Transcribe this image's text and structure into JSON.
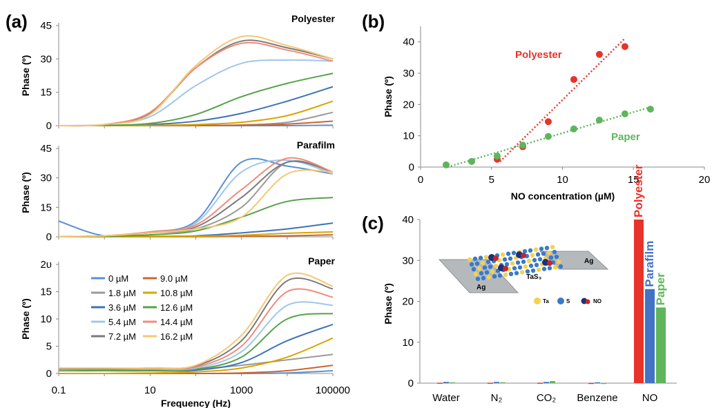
{
  "colors": {
    "0 µM": "#5b8fd0",
    "9.0 µM": "#c9662e",
    "1.8 µM": "#9a9a9a",
    "10.8 µM": "#d9a400",
    "3.6 µM": "#3d73b6",
    "12.6 µM": "#56a24a",
    "5.4 µM": "#9fc6ea",
    "14.4 µM": "#f08a78",
    "7.2 µM": "#7a7a7a",
    "16.2 µM": "#f6c773",
    "polyester": "#e8332a",
    "paraffilm": "#4472c4",
    "paper": "#5fb55b"
  },
  "chart_data": [
    {
      "panel_label": "(a)",
      "type": "line",
      "title": "Polyester",
      "xlabel": "",
      "ylabel": "Phase (º)",
      "xscale": "log",
      "xlim": [
        0.1,
        100000
      ],
      "ylim": [
        0,
        45
      ],
      "yticks": [
        "0",
        "15",
        "30",
        "45"
      ],
      "x": [
        0.1,
        1,
        10,
        100,
        1000,
        10000,
        100000
      ],
      "series": [
        {
          "name": "0 µM",
          "values": [
            0,
            0,
            0,
            0,
            0,
            0,
            0.2
          ]
        },
        {
          "name": "1.8 µM",
          "values": [
            0,
            0,
            0,
            0.1,
            0.3,
            1.5,
            6
          ]
        },
        {
          "name": "3.6 µM",
          "values": [
            0,
            0.1,
            0.5,
            2,
            5.5,
            11,
            17.5
          ]
        },
        {
          "name": "5.4 µM",
          "values": [
            0,
            0.5,
            4,
            18,
            28,
            29.5,
            29
          ]
        },
        {
          "name": "7.2 µM",
          "values": [
            0,
            0.5,
            5.5,
            26,
            38,
            35,
            30
          ]
        },
        {
          "name": "9.0 µM",
          "values": [
            0,
            0,
            0,
            0.05,
            0.2,
            0.7,
            2
          ]
        },
        {
          "name": "10.8 µM",
          "values": [
            0,
            0,
            0.1,
            0.5,
            1.5,
            4.5,
            11
          ]
        },
        {
          "name": "12.6 µM",
          "values": [
            0,
            0.1,
            1,
            5,
            13,
            19,
            23.5
          ]
        },
        {
          "name": "14.4 µM",
          "values": [
            0,
            0.5,
            6,
            26,
            37,
            34,
            29
          ]
        },
        {
          "name": "16.2 µM",
          "values": [
            0,
            0.5,
            5,
            27,
            40,
            36,
            30
          ]
        }
      ]
    },
    {
      "type": "line",
      "title": "Parafilm",
      "xlabel": "",
      "ylabel": "Phase (º)",
      "xscale": "log",
      "xlim": [
        0.1,
        100000
      ],
      "ylim": [
        0,
        45
      ],
      "yticks": [
        "0",
        "15",
        "30",
        "45"
      ],
      "x": [
        0.1,
        1,
        10,
        100,
        1000,
        10000,
        100000
      ],
      "series": [
        {
          "name": "0 µM",
          "values": [
            8,
            0.5,
            2.5,
            8,
            38,
            36,
            32
          ]
        },
        {
          "name": "1.8 µM",
          "values": [
            0,
            0.5,
            2,
            4,
            15,
            38,
            33
          ]
        },
        {
          "name": "3.6 µM",
          "values": [
            0,
            0,
            0.2,
            0.5,
            2,
            4,
            7
          ]
        },
        {
          "name": "5.4 µM",
          "values": [
            0,
            0.5,
            2.5,
            7,
            33,
            39,
            32
          ]
        },
        {
          "name": "7.2 µM",
          "values": [
            0,
            0.5,
            2,
            5,
            20,
            38,
            33
          ]
        },
        {
          "name": "9.0 µM",
          "values": [
            0,
            0,
            0,
            0.05,
            0.2,
            0.5,
            1
          ]
        },
        {
          "name": "10.8 µM",
          "values": [
            0,
            0,
            0.1,
            0.3,
            0.8,
            1.8,
            2.5
          ]
        },
        {
          "name": "12.6 µM",
          "values": [
            0,
            0.2,
            1,
            3,
            10,
            18,
            20
          ]
        },
        {
          "name": "14.4 µM",
          "values": [
            0,
            0.5,
            2.5,
            6,
            24,
            40,
            33
          ]
        },
        {
          "name": "16.2 µM",
          "values": [
            0,
            0.5,
            2,
            4,
            10,
            32,
            33
          ]
        }
      ]
    },
    {
      "type": "line",
      "title": "Paper",
      "xlabel": "Frequency (Hz)",
      "ylabel": "Phase (º)",
      "xscale": "log",
      "xlim": [
        0.1,
        100000
      ],
      "ylim": [
        0,
        20
      ],
      "yticks": [
        "0",
        "5",
        "10",
        "15",
        "2υ"
      ],
      "xticks": [
        "0.1",
        "10",
        "1000",
        "100000"
      ],
      "legend_placement": "left",
      "x": [
        0.1,
        1,
        10,
        100,
        1000,
        10000,
        100000
      ],
      "series": [
        {
          "name": "0 µM",
          "values": [
            0,
            0,
            0,
            0,
            0,
            0.1,
            0.5
          ]
        },
        {
          "name": "9.0 µM",
          "values": [
            0,
            0,
            0,
            0,
            0.1,
            0.5,
            1.5
          ]
        },
        {
          "name": "1.8 µM",
          "values": [
            0.7,
            0.7,
            0.7,
            0.8,
            1.5,
            2.5,
            3.5
          ]
        },
        {
          "name": "10.8 µM",
          "values": [
            0,
            0,
            0.1,
            0.3,
            1,
            3,
            6.5
          ]
        },
        {
          "name": "3.6 µM",
          "values": [
            0.5,
            0.5,
            0.5,
            0.6,
            2,
            6,
            9
          ]
        },
        {
          "name": "12.6 µM",
          "values": [
            0.5,
            0.5,
            0.6,
            0.8,
            3,
            10,
            11
          ]
        },
        {
          "name": "5.4 µM",
          "values": [
            0.7,
            0.8,
            0.8,
            1,
            4,
            12.5,
            12.5
          ]
        },
        {
          "name": "14.4 µM",
          "values": [
            0.8,
            0.8,
            0.9,
            1.2,
            5,
            15,
            14
          ]
        },
        {
          "name": "7.2 µM",
          "values": [
            0.9,
            0.9,
            1,
            1.4,
            6,
            17,
            15.5
          ]
        },
        {
          "name": "16.2 µM",
          "values": [
            1,
            1,
            1,
            1.5,
            7,
            18,
            16
          ]
        }
      ]
    },
    {
      "panel_label": "(b)",
      "type": "scatter",
      "title": "",
      "xlabel": "NO concentration (µM)",
      "ylabel": "Phase (º)",
      "xlim": [
        0,
        20
      ],
      "ylim": [
        0,
        45
      ],
      "xticks": [
        "0",
        "5",
        "10",
        "15",
        "20"
      ],
      "yticks": [
        "0",
        "10",
        "20",
        "30",
        "40"
      ],
      "series": [
        {
          "name": "Polyester",
          "trendline": "dotted",
          "points": [
            [
              5.4,
              2.5
            ],
            [
              7.2,
              6.5
            ],
            [
              9.0,
              14.5
            ],
            [
              10.8,
              28
            ],
            [
              12.6,
              36
            ],
            [
              14.4,
              38.5
            ]
          ]
        },
        {
          "name": "Paper",
          "trendline": "dotted",
          "points": [
            [
              1.8,
              0.7
            ],
            [
              3.6,
              1.8
            ],
            [
              5.4,
              3.5
            ],
            [
              7.2,
              7
            ],
            [
              9.0,
              9.8
            ],
            [
              10.8,
              12.2
            ],
            [
              12.6,
              15
            ],
            [
              14.4,
              17
            ],
            [
              16.2,
              18.5
            ]
          ]
        }
      ]
    },
    {
      "panel_label": "(c)",
      "type": "bar",
      "title": "",
      "xlabel": "",
      "ylabel": "Phase (º)",
      "ylim": [
        0,
        40
      ],
      "yticks": [
        "0",
        "10",
        "20",
        "30",
        "40"
      ],
      "categories": [
        "Water",
        "N₂",
        "CO₂",
        "Benzene",
        "NO"
      ],
      "series": [
        {
          "name": "Polyester",
          "values": [
            0.1,
            0.1,
            0.1,
            0.05,
            40
          ]
        },
        {
          "name": "Parafilm",
          "values": [
            0.3,
            0.3,
            0.3,
            0.2,
            23
          ]
        },
        {
          "name": "Paper",
          "values": [
            0.2,
            0.2,
            0.5,
            0.05,
            18.5
          ]
        }
      ],
      "inset": {
        "labels": [
          "Ag",
          "TaS₃",
          "Ag"
        ],
        "legend": [
          "Ta",
          "S",
          "NO"
        ]
      }
    }
  ]
}
